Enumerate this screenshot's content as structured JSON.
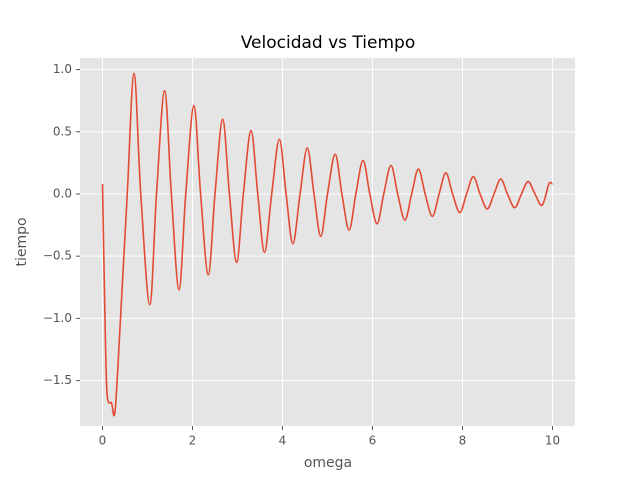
{
  "chart_data": {
    "type": "line",
    "title": "Velocidad vs Tiempo",
    "xlabel": "omega",
    "ylabel": "tiempo",
    "x": [
      0,
      0.05,
      0.1,
      0.2,
      0.28,
      0.4,
      0.55,
      0.7,
      0.85,
      1.05,
      1.2,
      1.38,
      1.53,
      1.7,
      1.85,
      2.03,
      2.18,
      2.35,
      2.5,
      2.67,
      2.82,
      2.98,
      3.13,
      3.3,
      3.45,
      3.6,
      3.76,
      3.93,
      4.08,
      4.23,
      4.39,
      4.55,
      4.7,
      4.85,
      5.0,
      5.17,
      5.32,
      5.48,
      5.63,
      5.79,
      5.94,
      6.1,
      6.25,
      6.41,
      6.56,
      6.72,
      6.87,
      7.02,
      7.17,
      7.33,
      7.48,
      7.63,
      7.78,
      7.94,
      8.09,
      8.24,
      8.39,
      8.55,
      8.7,
      8.85,
      9.0,
      9.16,
      9.31,
      9.46,
      9.61,
      9.77,
      9.92,
      10.0
    ],
    "series": [
      {
        "color": "#e24a33",
        "values": [
          0.08,
          -0.9,
          -1.6,
          -1.68,
          -1.74,
          -1.0,
          0.0,
          0.97,
          0.0,
          -0.89,
          0.0,
          0.83,
          0.0,
          -0.77,
          0.0,
          0.71,
          0.0,
          -0.65,
          0.0,
          0.6,
          0.0,
          -0.55,
          0.0,
          0.51,
          0.0,
          -0.47,
          0.0,
          0.44,
          0.0,
          -0.4,
          0.0,
          0.37,
          0.0,
          -0.34,
          0.0,
          0.32,
          0.0,
          -0.29,
          0.0,
          0.27,
          0.0,
          -0.24,
          0.0,
          0.23,
          0.0,
          -0.21,
          0.0,
          0.2,
          0.0,
          -0.18,
          0.0,
          0.17,
          0.0,
          -0.15,
          0.0,
          0.14,
          0.0,
          -0.12,
          0.0,
          0.12,
          0.0,
          -0.11,
          0.0,
          0.1,
          0.0,
          -0.09,
          0.08,
          0.08
        ]
      }
    ],
    "xlim": [
      -0.5,
      10.5
    ],
    "ylim": [
      -1.865,
      1.093
    ],
    "xticks": [
      0,
      2,
      4,
      6,
      8,
      10
    ],
    "yticks": [
      {
        "value": -1.5,
        "label": "−1.5"
      },
      {
        "value": -1.0,
        "label": "−1.0"
      },
      {
        "value": -0.5,
        "label": "−0.5"
      },
      {
        "value": 0,
        "label": "0.0"
      },
      {
        "value": 0.5,
        "label": "0.5"
      },
      {
        "value": 1.0,
        "label": "1.0"
      }
    ],
    "grid": true
  }
}
